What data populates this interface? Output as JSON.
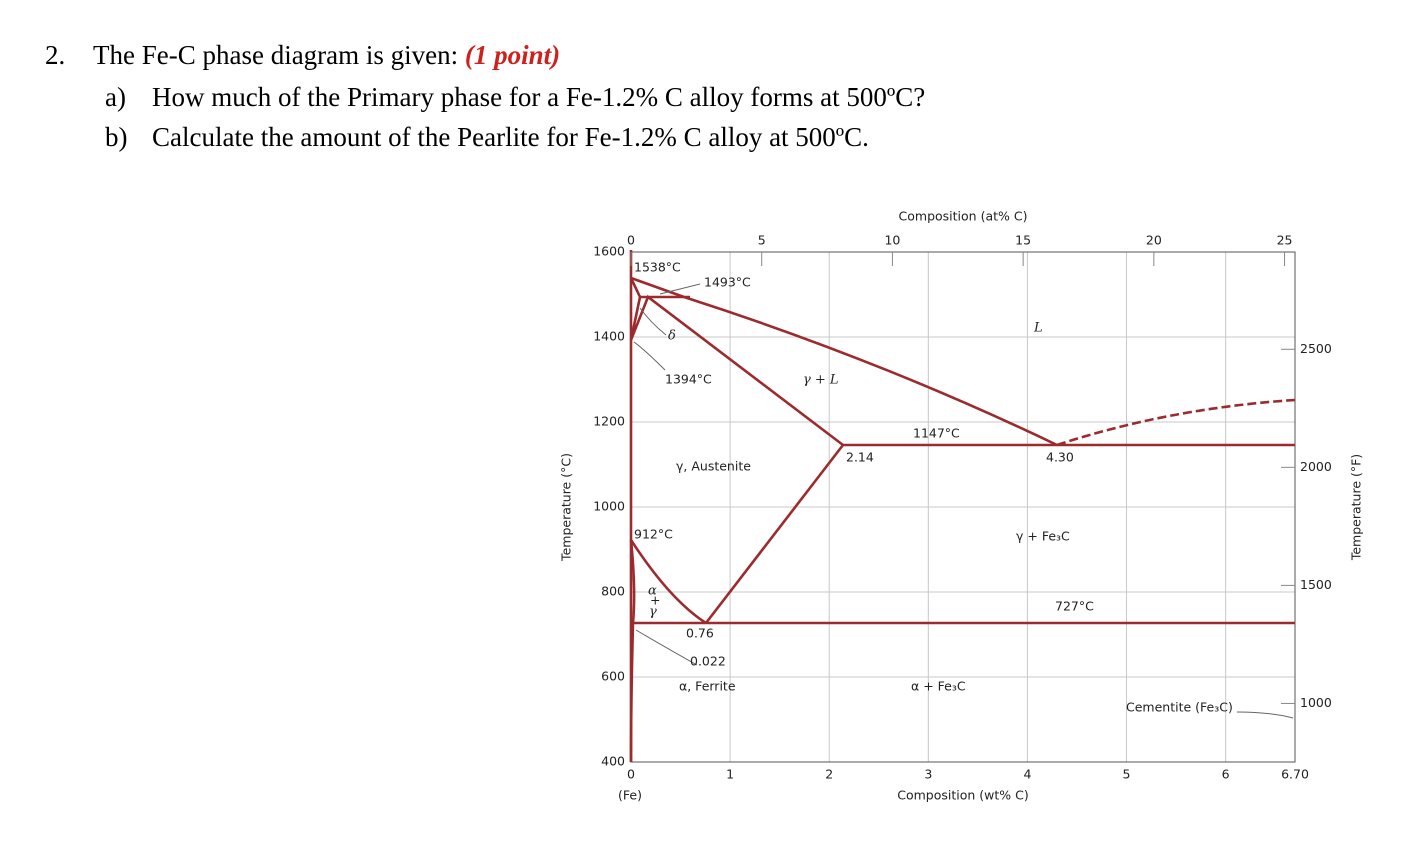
{
  "question": {
    "number": "2.",
    "text": "The Fe-C phase diagram is given:",
    "points": "(1 point)"
  },
  "parts": [
    {
      "label": "a)",
      "text": "How much of the Primary phase for a Fe-1.2% C alloy forms at 500ºC?"
    },
    {
      "label": "b)",
      "text": "Calculate the amount of the Pearlite for Fe-1.2% C alloy at 500ºC."
    }
  ],
  "diagram": {
    "top_axis_label": "Composition (at% C)",
    "bottom_axis_label": "Composition (wt% C)",
    "left_axis_label": "Temperature (°C)",
    "right_axis_label": "Temperature (°F)",
    "origin_label": "(Fe)",
    "xlim": [
      0,
      6.7
    ],
    "xticks": [
      0,
      1,
      2,
      3,
      4,
      5,
      6,
      {
        "value": 6.7,
        "label": "6.70"
      }
    ],
    "x2lim": [
      0,
      25.4
    ],
    "x2ticks": [
      0,
      5,
      10,
      15,
      20,
      25
    ],
    "ylim": [
      400,
      1600
    ],
    "yticks": [
      400,
      600,
      800,
      1000,
      1200,
      1400,
      1600
    ],
    "y2ticks": [
      1000,
      1500,
      2000,
      2500
    ],
    "annotations": [
      "1538°C",
      "1493°C",
      "δ",
      "1394°C",
      "γ + L",
      "L",
      "1147°C",
      "2.14",
      "4.30",
      "γ, Austenite",
      "912°C",
      "γ + Fe₃C",
      "α",
      "+",
      "γ",
      "727°C",
      "0.76",
      "0.022",
      "α, Ferrite",
      "α + Fe₃C",
      "Cementite (Fe₃C)"
    ]
  }
}
